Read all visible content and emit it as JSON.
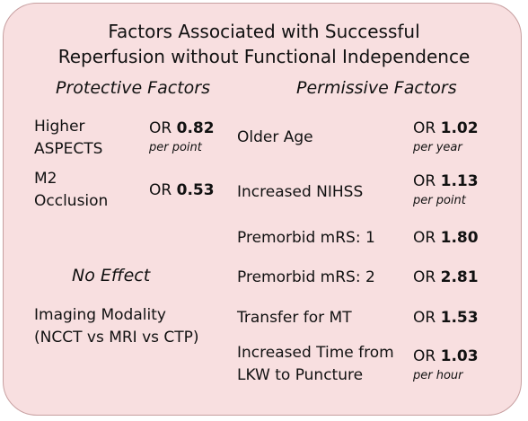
{
  "title": {
    "line1": "Factors Associated with Successful",
    "line2": "Reperfusion without Functional Independence"
  },
  "protective": {
    "heading": "Protective Factors",
    "items": [
      {
        "label_line1": "Higher",
        "label_line2": "ASPECTS",
        "or_prefix": "OR",
        "or_value": "0.82",
        "unit": "per point"
      },
      {
        "label_line1": "M2",
        "label_line2": "Occlusion",
        "or_prefix": "OR",
        "or_value": "0.53",
        "unit": ""
      }
    ]
  },
  "no_effect": {
    "heading": "No Effect",
    "items": [
      {
        "label_line1": "Imaging Modality",
        "label_line2": "(NCCT vs MRI vs CTP)"
      }
    ]
  },
  "permissive": {
    "heading": "Permissive Factors",
    "items": [
      {
        "label_line1": "Older Age",
        "label_line2": "",
        "or_prefix": "OR",
        "or_value": "1.02",
        "unit": "per year"
      },
      {
        "label_line1": "Increased NIHSS",
        "label_line2": "",
        "or_prefix": "OR",
        "or_value": "1.13",
        "unit": "per point"
      },
      {
        "label_line1": "Premorbid mRS: 1",
        "label_line2": "",
        "or_prefix": "OR",
        "or_value": "1.80",
        "unit": ""
      },
      {
        "label_line1": "Premorbid mRS: 2",
        "label_line2": "",
        "or_prefix": "OR",
        "or_value": "2.81",
        "unit": ""
      },
      {
        "label_line1": "Transfer for MT",
        "label_line2": "",
        "or_prefix": "OR",
        "or_value": "1.53",
        "unit": ""
      },
      {
        "label_line1": "Increased Time from",
        "label_line2": "LKW to Puncture",
        "or_prefix": "OR",
        "or_value": "1.03",
        "unit": "per hour"
      }
    ]
  },
  "colors": {
    "card_fill": "#f8dfe0",
    "card_border": "#c79fa0",
    "text": "#111111"
  }
}
